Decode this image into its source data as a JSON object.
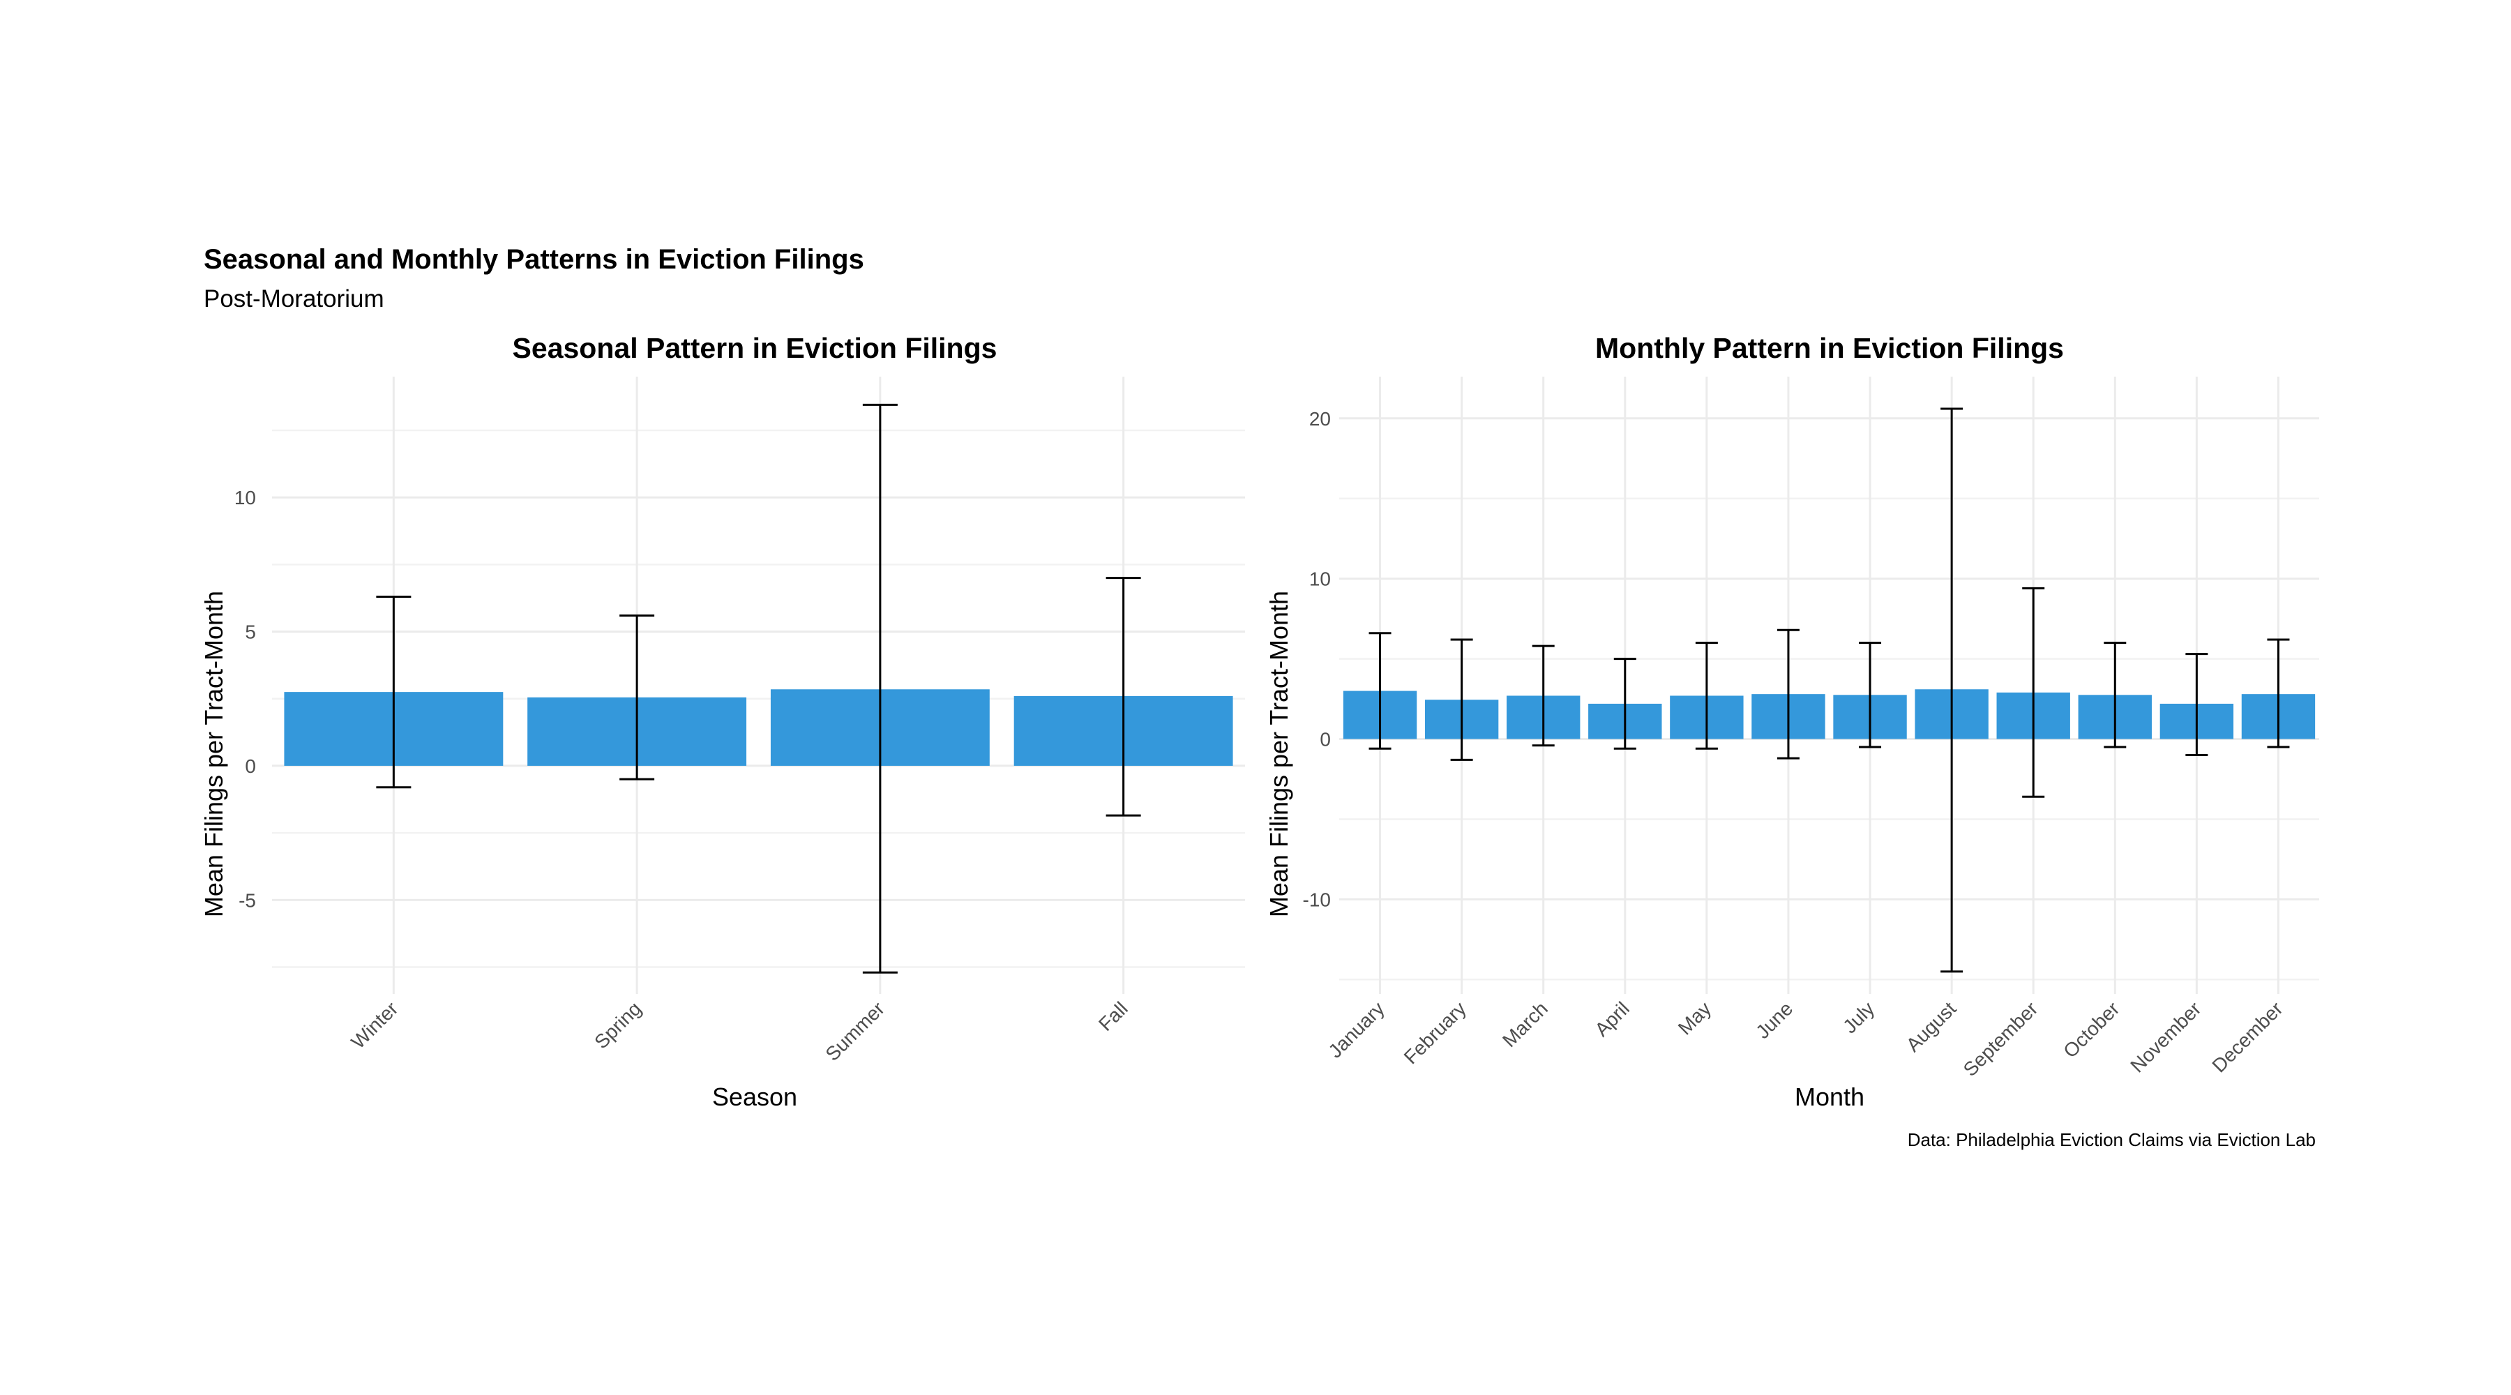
{
  "figure": {
    "title": "Seasonal and Monthly Patterns in Eviction Filings",
    "subtitle": "Post-Moratorium",
    "caption": "Data: Philadelphia Eviction Claims via Eviction Lab",
    "bar_color": "#3498db",
    "errorbar_color": "#000000",
    "gridline_color": "#ebebeb"
  },
  "chart_data": [
    {
      "type": "bar",
      "title": "Seasonal Pattern in Eviction Filings",
      "xlabel": "Season",
      "ylabel": "Mean Filings per Tract-Month",
      "ylim": [
        -8.5,
        14.5
      ],
      "yticks": [
        -5,
        0,
        5,
        10
      ],
      "ytick_labels": [
        "-5",
        "0",
        "5",
        "10"
      ],
      "grid": true,
      "error_bars": true,
      "categories": [
        "Winter",
        "Spring",
        "Summer",
        "Fall"
      ],
      "values": [
        2.75,
        2.55,
        2.85,
        2.6
      ],
      "error_low": [
        -0.8,
        -0.5,
        -7.7,
        -1.85
      ],
      "error_high": [
        6.3,
        5.6,
        13.45,
        7.0
      ]
    },
    {
      "type": "bar",
      "title": "Monthly Pattern in Eviction Filings",
      "xlabel": "Month",
      "ylabel": "Mean Filings per Tract-Month",
      "ylim": [
        -15.9,
        22.6
      ],
      "yticks": [
        -10,
        0,
        10,
        20
      ],
      "ytick_labels": [
        "-10",
        "0",
        "10",
        "20"
      ],
      "grid": true,
      "error_bars": true,
      "categories": [
        "January",
        "February",
        "March",
        "April",
        "May",
        "June",
        "July",
        "August",
        "September",
        "October",
        "November",
        "December"
      ],
      "values": [
        3.0,
        2.45,
        2.7,
        2.2,
        2.7,
        2.8,
        2.75,
        3.1,
        2.9,
        2.75,
        2.2,
        2.8
      ],
      "error_low": [
        -0.6,
        -1.3,
        -0.4,
        -0.6,
        -0.6,
        -1.2,
        -0.5,
        -14.5,
        -3.6,
        -0.5,
        -1.0,
        -0.5
      ],
      "error_high": [
        6.6,
        6.2,
        5.8,
        5.0,
        6.0,
        6.8,
        6.0,
        20.6,
        9.4,
        6.0,
        5.3,
        6.2
      ]
    }
  ]
}
